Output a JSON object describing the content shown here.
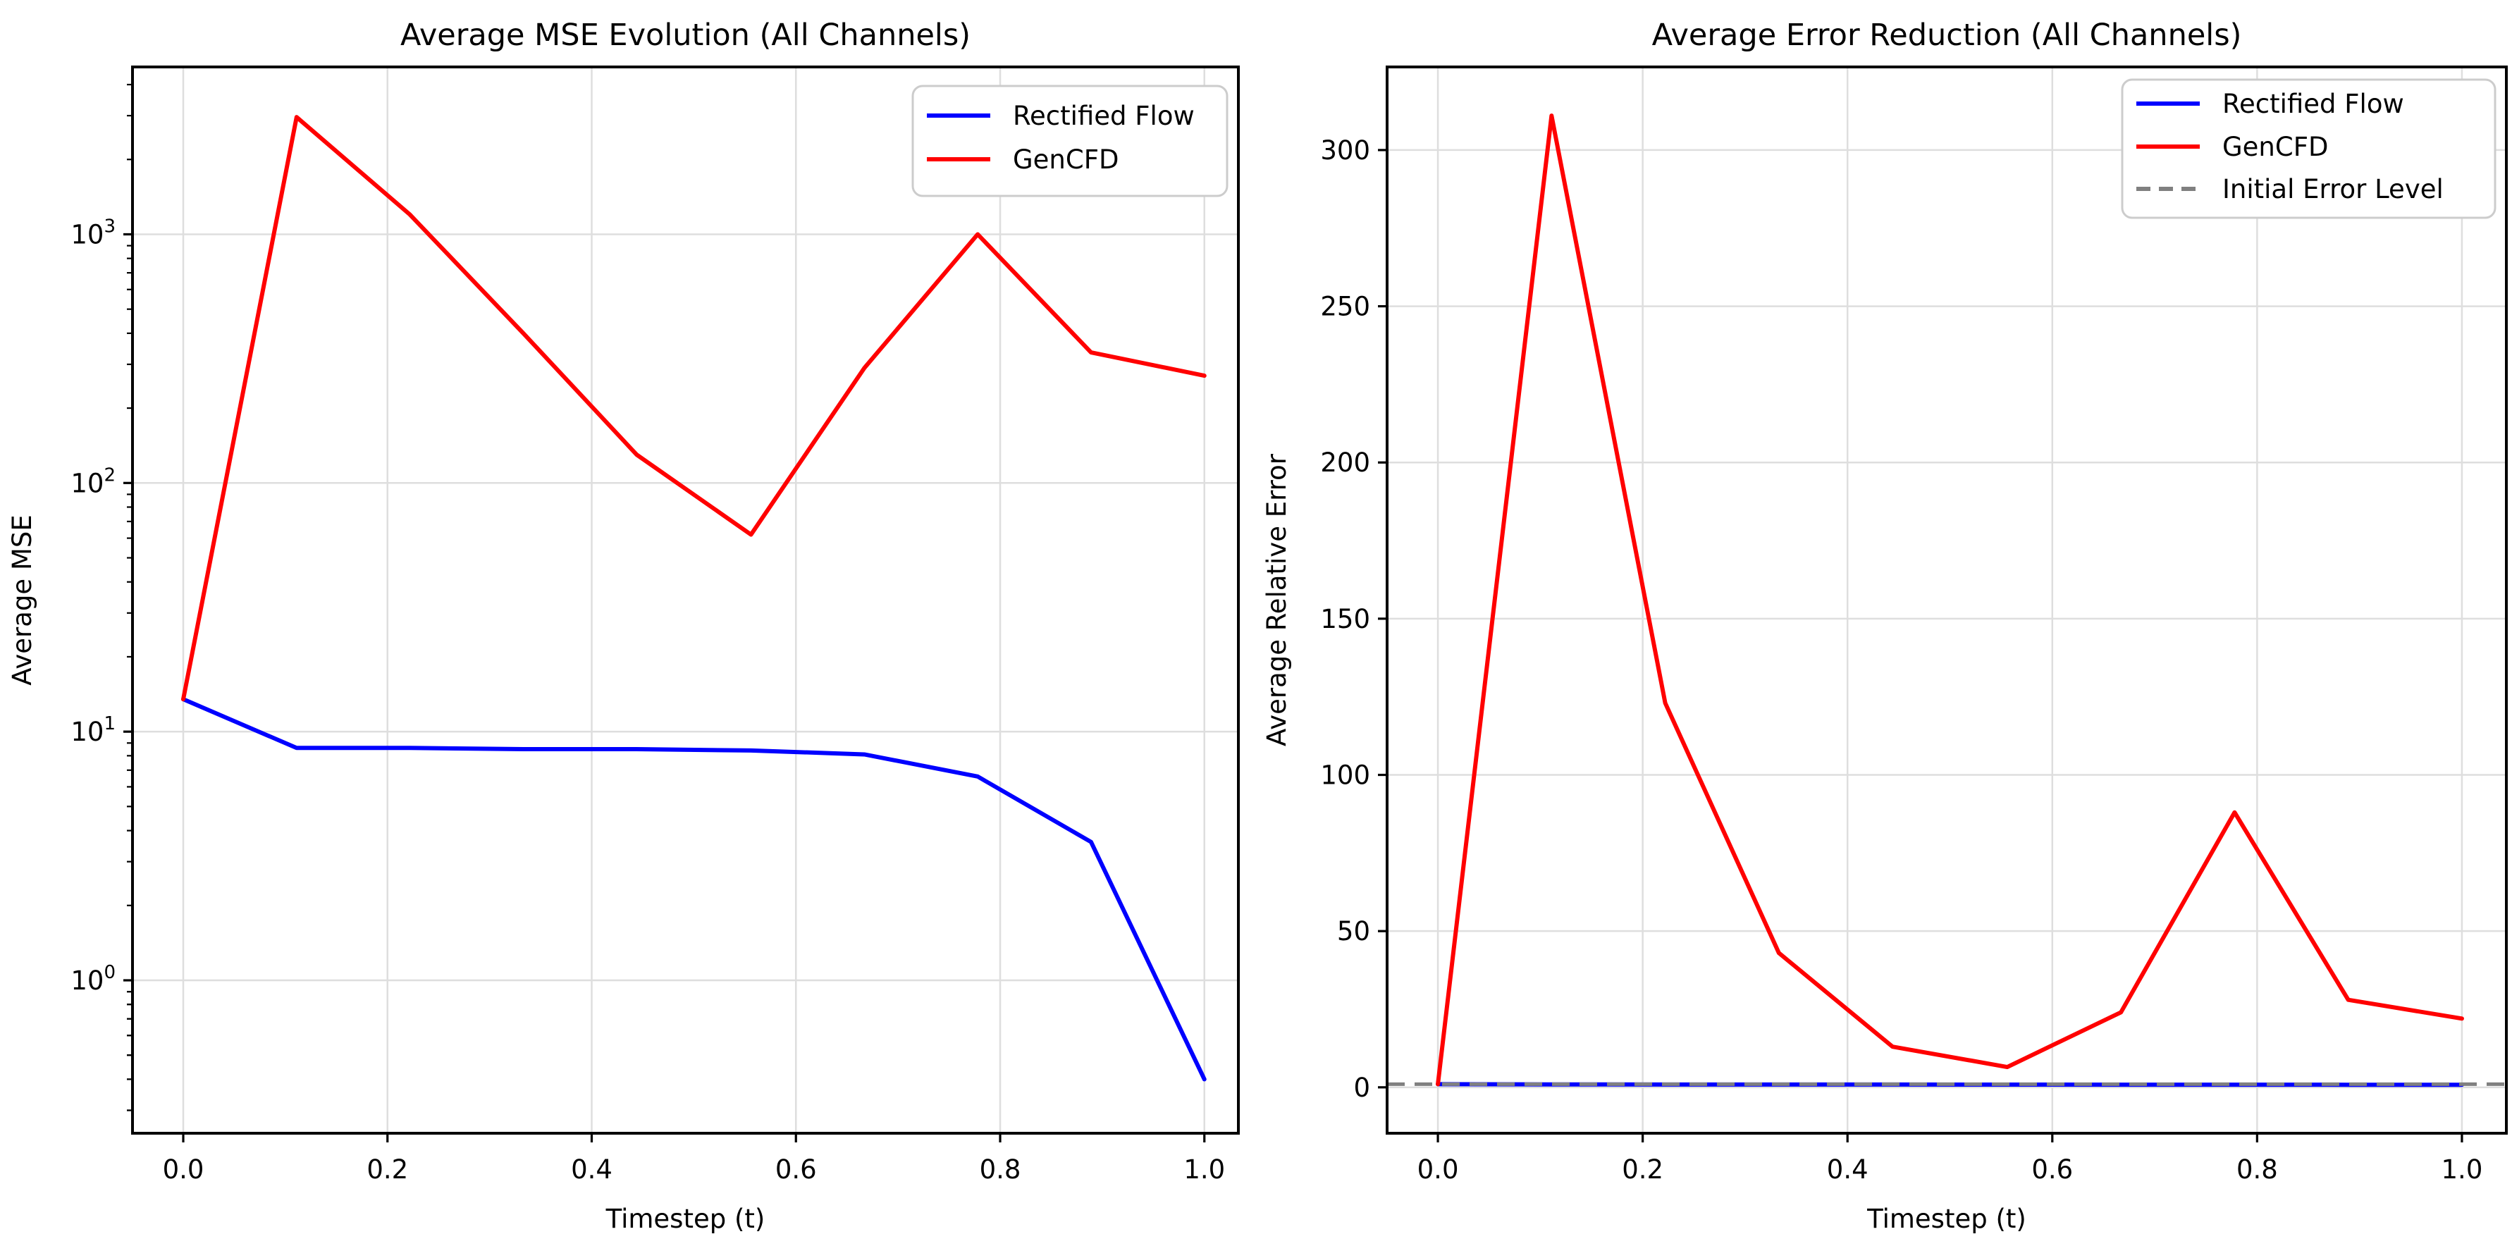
{
  "figure": {
    "background": "#ffffff",
    "grid_color": "#dedede",
    "spine_color": "#000000",
    "accent_blue": "#0000ff",
    "accent_red": "#ff0000",
    "accent_gray": "#808080"
  },
  "chart_data": [
    {
      "type": "line",
      "title": "Average MSE Evolution (All Channels)",
      "xlabel": "Timestep (t)",
      "ylabel": "Average MSE",
      "yscale": "log",
      "grid": true,
      "legend": {
        "location": "upper right",
        "entries": [
          "Rectified Flow",
          "GenCFD"
        ]
      },
      "x": [
        0,
        0.111,
        0.222,
        0.333,
        0.444,
        0.556,
        0.667,
        0.778,
        0.889,
        1.0
      ],
      "series": [
        {
          "name": "Rectified Flow",
          "color": "#0000ff",
          "style": "solid",
          "values": [
            13.5,
            8.6,
            8.6,
            8.5,
            8.5,
            8.4,
            8.1,
            6.6,
            3.6,
            0.4
          ]
        },
        {
          "name": "GenCFD",
          "color": "#ff0000",
          "style": "solid",
          "values": [
            13.5,
            2960,
            1200,
            400,
            130,
            62,
            290,
            1000,
            335,
            270
          ]
        }
      ],
      "xticks": [
        0.0,
        0.2,
        0.4,
        0.6,
        0.8,
        1.0
      ],
      "xtick_labels": [
        "0.0",
        "0.2",
        "0.4",
        "0.6",
        "0.8",
        "1.0"
      ],
      "ytick_exponents": [
        0,
        1,
        2,
        3
      ],
      "xlim": [
        -0.0497,
        1.0333
      ],
      "ylim_log10": [
        -0.615,
        3.673
      ]
    },
    {
      "type": "line",
      "title": "Average Error Reduction (All Channels)",
      "xlabel": "Timestep (t)",
      "ylabel": "Average Relative Error",
      "yscale": "linear",
      "grid": true,
      "legend": {
        "location": "upper right",
        "entries": [
          "Rectified Flow",
          "GenCFD",
          "Initial Error Level"
        ]
      },
      "x": [
        0,
        0.111,
        0.222,
        0.333,
        0.444,
        0.556,
        0.667,
        0.778,
        0.889,
        1.0
      ],
      "series": [
        {
          "name": "Rectified Flow",
          "color": "#0000ff",
          "style": "solid",
          "values": [
            1.0,
            0.92,
            0.9,
            0.89,
            0.88,
            0.87,
            0.85,
            0.84,
            0.82,
            0.8
          ]
        },
        {
          "name": "GenCFD",
          "color": "#ff0000",
          "style": "solid",
          "values": [
            1.0,
            311,
            123,
            43,
            13,
            6.5,
            24,
            88,
            28,
            22
          ]
        },
        {
          "name": "Initial Error Level",
          "color": "#808080",
          "style": "dashed",
          "axhline": 1.0
        }
      ],
      "xticks": [
        0.0,
        0.2,
        0.4,
        0.6,
        0.8,
        1.0
      ],
      "xtick_labels": [
        "0.0",
        "0.2",
        "0.4",
        "0.6",
        "0.8",
        "1.0"
      ],
      "yticks": [
        0,
        50,
        100,
        150,
        200,
        250,
        300
      ],
      "ytick_labels": [
        "0",
        "50",
        "100",
        "150",
        "200",
        "250",
        "300"
      ],
      "xlim": [
        -0.0496,
        1.0434
      ],
      "ylim": [
        -14.7,
        326.6
      ]
    }
  ]
}
